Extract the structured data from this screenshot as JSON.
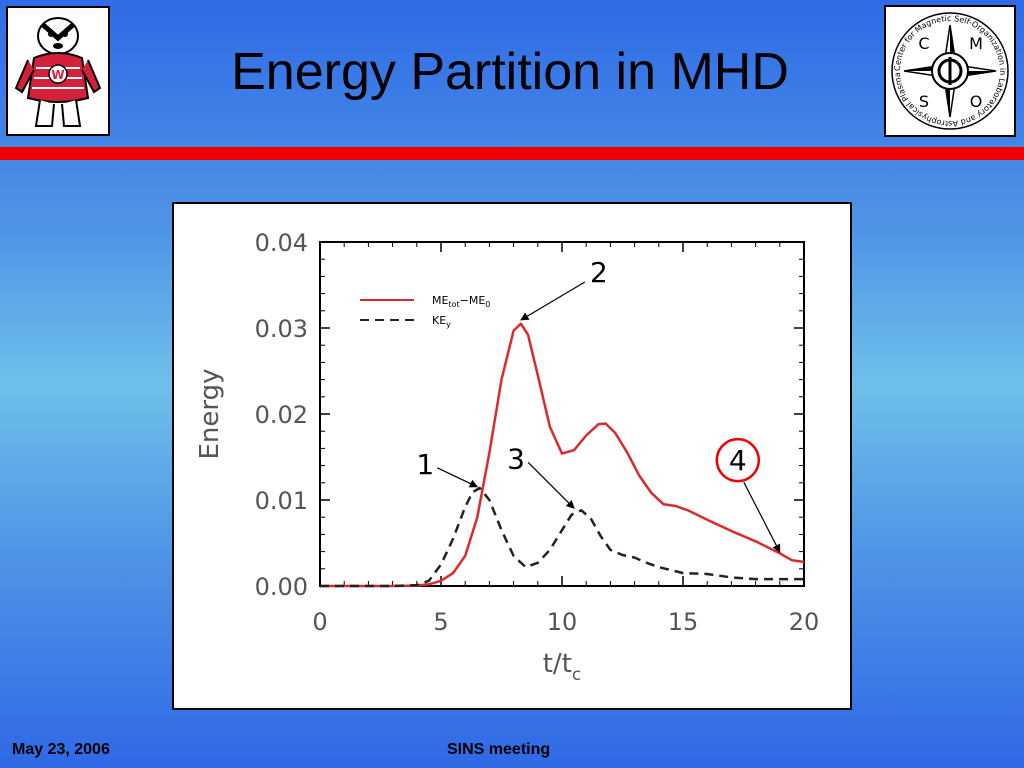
{
  "slide": {
    "title": "Energy Partition in MHD",
    "footer_date": "May 23, 2006",
    "footer_meeting": "SINS meeting",
    "logo_right_text": "Center for Magnetic Self-Organization in Laboratory and Astrophysical Plasmas",
    "logo_right_letters": [
      "C",
      "M",
      "S",
      "O"
    ]
  },
  "colors": {
    "accent_red": "#ee0000",
    "series_red": "#d92b2b",
    "background_blue": "#2f6be6"
  },
  "chart_data": {
    "type": "line",
    "title": "",
    "xlabel": "t/t",
    "xlabel_sub": "c",
    "ylabel": "Energy",
    "xlim": [
      0,
      20
    ],
    "ylim": [
      0,
      0.04
    ],
    "xticks": [
      "0",
      "5",
      "10",
      "15",
      "20"
    ],
    "yticks": [
      "0.00",
      "0.01",
      "0.02",
      "0.03",
      "0.04"
    ],
    "legend_position": "top-left",
    "legend": [
      {
        "label": "ME",
        "sub1": "tot",
        "mid": "−ME",
        "sub2": "0",
        "style": "solid"
      },
      {
        "label": "KE",
        "sub1": "y",
        "mid": "",
        "sub2": "",
        "style": "dashed"
      }
    ],
    "series": [
      {
        "style": "solid",
        "color": "#d92b2b",
        "x": [
          0,
          3,
          4,
          4.5,
          5,
          5.5,
          6,
          6.5,
          7,
          7.5,
          8,
          8.3,
          8.6,
          9,
          9.5,
          10,
          10.5,
          11,
          11.5,
          11.8,
          12.2,
          12.7,
          13.2,
          13.7,
          14.2,
          14.7,
          15.2,
          16,
          17,
          18,
          19,
          19.5,
          20
        ],
        "y": [
          0,
          0,
          5e-05,
          0.0002,
          0.0006,
          0.0015,
          0.0035,
          0.008,
          0.0155,
          0.024,
          0.0297,
          0.0305,
          0.0292,
          0.0245,
          0.0185,
          0.0154,
          0.0158,
          0.0175,
          0.0188,
          0.0189,
          0.0178,
          0.0155,
          0.0128,
          0.0108,
          0.0095,
          0.0093,
          0.0088,
          0.0077,
          0.0064,
          0.0052,
          0.0038,
          0.003,
          0.0028
        ]
      },
      {
        "style": "dashed",
        "color": "#222222",
        "x": [
          0,
          3,
          4,
          4.5,
          5,
          5.5,
          6,
          6.3,
          6.6,
          7,
          7.5,
          8,
          8.5,
          9,
          9.5,
          10,
          10.4,
          10.8,
          11.2,
          11.6,
          12,
          12.5,
          13,
          13.5,
          14,
          15,
          16,
          17,
          18,
          19,
          20
        ],
        "y": [
          0,
          0,
          0.0001,
          0.0006,
          0.0025,
          0.0055,
          0.0092,
          0.0109,
          0.0114,
          0.01,
          0.0065,
          0.0035,
          0.0022,
          0.0027,
          0.0042,
          0.0065,
          0.0083,
          0.0088,
          0.0078,
          0.0058,
          0.0042,
          0.0036,
          0.0033,
          0.0027,
          0.0022,
          0.0015,
          0.0014,
          0.001,
          0.0008,
          0.0008,
          0.0008
        ]
      }
    ],
    "annotations": [
      {
        "label": "1",
        "points_to_x": 6.5,
        "points_to_y": 0.0113,
        "circled": false
      },
      {
        "label": "2",
        "points_to_x": 8.3,
        "points_to_y": 0.0307,
        "circled": false
      },
      {
        "label": "3",
        "points_to_x": 10.5,
        "points_to_y": 0.0088,
        "circled": false
      },
      {
        "label": "4",
        "points_to_x": 19.0,
        "points_to_y": 0.0037,
        "circled": true
      }
    ]
  }
}
